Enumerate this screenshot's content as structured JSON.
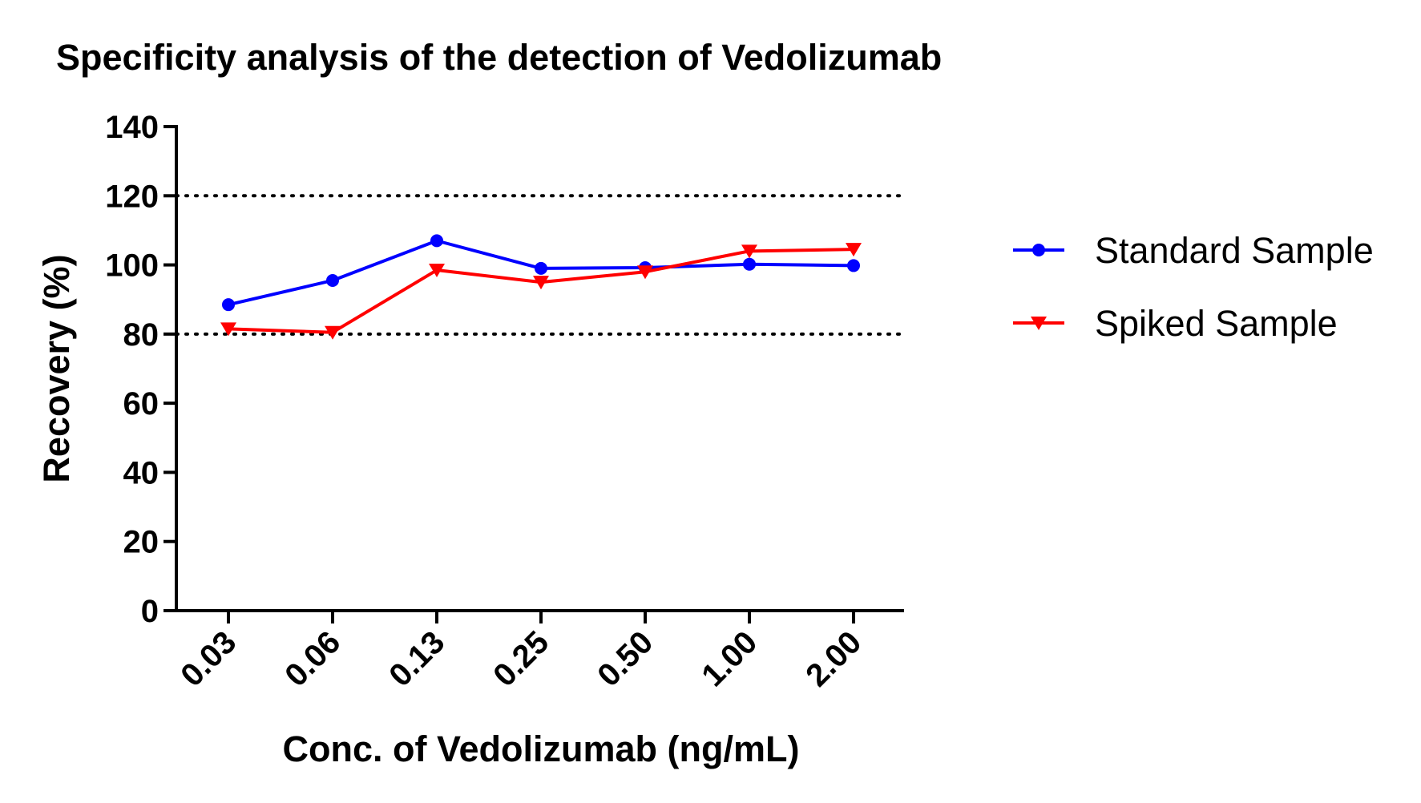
{
  "chart_data": {
    "type": "line",
    "title": "Specificity analysis of the detection of Vedolizumab",
    "xlabel": "Conc. of Vedolizumab (ng/mL)",
    "ylabel": "Recovery (%)",
    "categories": [
      "0.03",
      "0.06",
      "0.13",
      "0.25",
      "0.50",
      "1.00",
      "2.00"
    ],
    "ylim": [
      0,
      140
    ],
    "yticks": [
      0,
      20,
      40,
      60,
      80,
      100,
      120,
      140
    ],
    "reference_lines": [
      80,
      120
    ],
    "legend_position": "right",
    "grid": false,
    "series": [
      {
        "name": "Standard Sample",
        "color": "#0000ff",
        "marker": "circle",
        "values": [
          88.5,
          95.5,
          107,
          99,
          99.2,
          100.2,
          99.8
        ]
      },
      {
        "name": "Spiked Sample",
        "color": "#ff0000",
        "marker": "triangle-down",
        "values": [
          81.5,
          80.5,
          98.5,
          95,
          98,
          104,
          104.5
        ]
      }
    ]
  }
}
